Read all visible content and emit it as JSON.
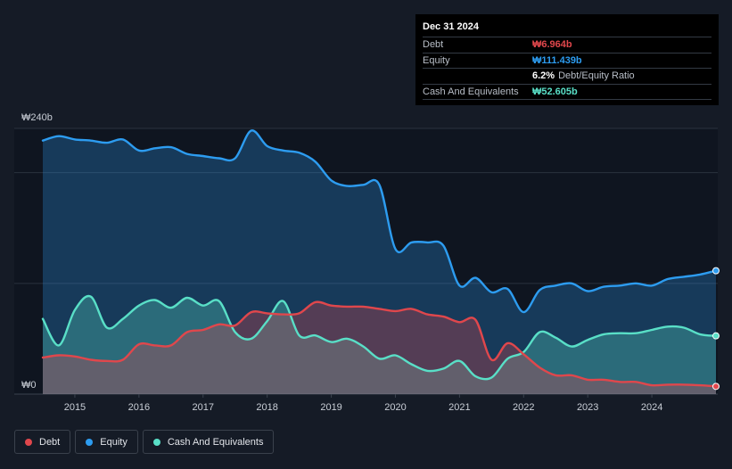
{
  "tooltip": {
    "date": "Dec 31 2024",
    "rows": [
      {
        "label": "Debt",
        "value": "₩6.964b",
        "color": "#e0474c"
      },
      {
        "label": "Equity",
        "value": "₩111.439b",
        "color": "#2d9cf0"
      },
      {
        "label": "",
        "ratio_value": "6.2%",
        "ratio_label": "Debt/Equity Ratio"
      },
      {
        "label": "Cash And Equivalents",
        "value": "₩52.605b",
        "color": "#59dfc7"
      }
    ]
  },
  "legend": [
    {
      "label": "Debt",
      "color": "#e0474c"
    },
    {
      "label": "Equity",
      "color": "#2d9cf0"
    },
    {
      "label": "Cash And Equivalents",
      "color": "#59dfc7"
    }
  ],
  "chart_data": {
    "type": "area",
    "y_labels": {
      "top": "₩240b",
      "bottom": "₩0"
    },
    "ylim": [
      0,
      240
    ],
    "xlim": [
      2014.5,
      2025.0
    ],
    "x_tick_labels": [
      "2015",
      "2016",
      "2017",
      "2018",
      "2019",
      "2020",
      "2021",
      "2022",
      "2023",
      "2024"
    ],
    "x_ticks": [
      2015,
      2016,
      2017,
      2018,
      2019,
      2020,
      2021,
      2022,
      2023,
      2024
    ],
    "series": [
      {
        "name": "Equity",
        "color": "#2d9cf0",
        "points": [
          [
            2014.5,
            229
          ],
          [
            2014.75,
            233
          ],
          [
            2015.0,
            230
          ],
          [
            2015.25,
            229
          ],
          [
            2015.5,
            227
          ],
          [
            2015.75,
            230
          ],
          [
            2016.0,
            220
          ],
          [
            2016.25,
            222
          ],
          [
            2016.5,
            223
          ],
          [
            2016.75,
            217
          ],
          [
            2017.0,
            215
          ],
          [
            2017.25,
            213
          ],
          [
            2017.5,
            213
          ],
          [
            2017.75,
            238
          ],
          [
            2018.0,
            224
          ],
          [
            2018.25,
            220
          ],
          [
            2018.5,
            218
          ],
          [
            2018.75,
            210
          ],
          [
            2019.0,
            193
          ],
          [
            2019.25,
            188
          ],
          [
            2019.5,
            189
          ],
          [
            2019.75,
            189
          ],
          [
            2020.0,
            131
          ],
          [
            2020.25,
            137
          ],
          [
            2020.5,
            137
          ],
          [
            2020.75,
            134
          ],
          [
            2021.0,
            98
          ],
          [
            2021.25,
            105
          ],
          [
            2021.5,
            92
          ],
          [
            2021.75,
            95
          ],
          [
            2022.0,
            74
          ],
          [
            2022.25,
            94
          ],
          [
            2022.5,
            98
          ],
          [
            2022.75,
            100
          ],
          [
            2023.0,
            93
          ],
          [
            2023.25,
            97
          ],
          [
            2023.5,
            98
          ],
          [
            2023.75,
            100
          ],
          [
            2024.0,
            98
          ],
          [
            2024.25,
            104
          ],
          [
            2024.5,
            106
          ],
          [
            2024.75,
            108
          ],
          [
            2025.0,
            111.439
          ]
        ]
      },
      {
        "name": "Cash And Equivalents",
        "color": "#59dfc7",
        "points": [
          [
            2014.5,
            68
          ],
          [
            2014.75,
            44
          ],
          [
            2015.0,
            76
          ],
          [
            2015.25,
            88
          ],
          [
            2015.5,
            60
          ],
          [
            2015.75,
            68
          ],
          [
            2016.0,
            80
          ],
          [
            2016.25,
            85
          ],
          [
            2016.5,
            78
          ],
          [
            2016.75,
            87
          ],
          [
            2017.0,
            80
          ],
          [
            2017.25,
            84
          ],
          [
            2017.5,
            56
          ],
          [
            2017.75,
            50
          ],
          [
            2018.0,
            66
          ],
          [
            2018.25,
            84
          ],
          [
            2018.5,
            53
          ],
          [
            2018.75,
            53
          ],
          [
            2019.0,
            47
          ],
          [
            2019.25,
            50
          ],
          [
            2019.5,
            43
          ],
          [
            2019.75,
            32
          ],
          [
            2020.0,
            35
          ],
          [
            2020.25,
            27
          ],
          [
            2020.5,
            21
          ],
          [
            2020.75,
            23
          ],
          [
            2021.0,
            30
          ],
          [
            2021.25,
            16
          ],
          [
            2021.5,
            15
          ],
          [
            2021.75,
            32
          ],
          [
            2022.0,
            38
          ],
          [
            2022.25,
            56
          ],
          [
            2022.5,
            51
          ],
          [
            2022.75,
            43
          ],
          [
            2023.0,
            49
          ],
          [
            2023.25,
            54
          ],
          [
            2023.5,
            55
          ],
          [
            2023.75,
            55
          ],
          [
            2024.0,
            58
          ],
          [
            2024.25,
            61
          ],
          [
            2024.5,
            60
          ],
          [
            2024.75,
            54
          ],
          [
            2025.0,
            52.605
          ]
        ]
      },
      {
        "name": "Debt",
        "color": "#e0474c",
        "points": [
          [
            2014.5,
            33
          ],
          [
            2014.75,
            35
          ],
          [
            2015.0,
            34
          ],
          [
            2015.25,
            31
          ],
          [
            2015.5,
            30
          ],
          [
            2015.75,
            31
          ],
          [
            2016.0,
            45
          ],
          [
            2016.25,
            44
          ],
          [
            2016.5,
            44
          ],
          [
            2016.75,
            56
          ],
          [
            2017.0,
            58
          ],
          [
            2017.25,
            63
          ],
          [
            2017.5,
            62
          ],
          [
            2017.75,
            74
          ],
          [
            2018.0,
            73
          ],
          [
            2018.25,
            72
          ],
          [
            2018.5,
            73
          ],
          [
            2018.75,
            83
          ],
          [
            2019.0,
            80
          ],
          [
            2019.25,
            79
          ],
          [
            2019.5,
            79
          ],
          [
            2019.75,
            77
          ],
          [
            2020.0,
            75
          ],
          [
            2020.25,
            77
          ],
          [
            2020.5,
            72
          ],
          [
            2020.75,
            70
          ],
          [
            2021.0,
            65
          ],
          [
            2021.25,
            67
          ],
          [
            2021.5,
            31
          ],
          [
            2021.75,
            46
          ],
          [
            2022.0,
            36
          ],
          [
            2022.25,
            24
          ],
          [
            2022.5,
            17
          ],
          [
            2022.75,
            17
          ],
          [
            2023.0,
            13
          ],
          [
            2023.25,
            13
          ],
          [
            2023.5,
            11
          ],
          [
            2023.75,
            11
          ],
          [
            2024.0,
            8
          ],
          [
            2024.25,
            8.5
          ],
          [
            2024.5,
            8.5
          ],
          [
            2024.75,
            8
          ],
          [
            2025.0,
            6.964
          ]
        ]
      }
    ]
  }
}
